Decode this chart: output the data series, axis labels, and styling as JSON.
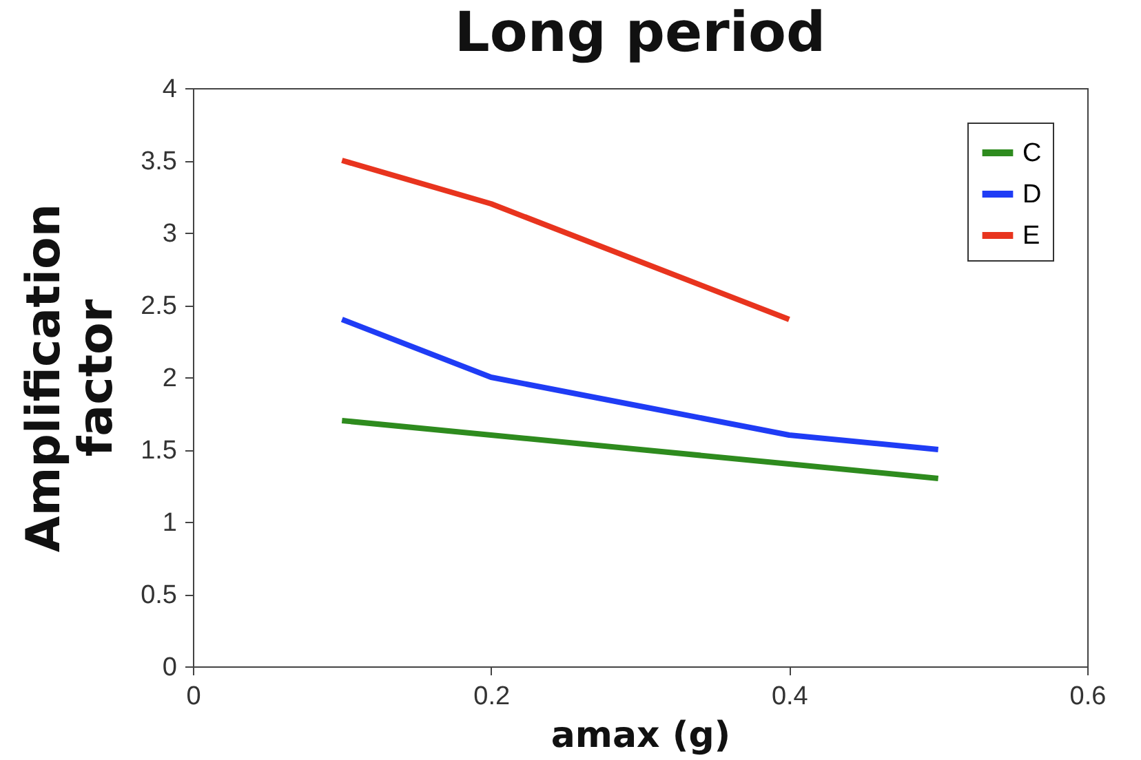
{
  "chart_data": {
    "type": "line",
    "title": "Long period",
    "xlabel": "amax (g)",
    "ylabel": "Amplification factor",
    "x": [
      0.1,
      0.2,
      0.3,
      0.4,
      0.5
    ],
    "series": [
      {
        "name": "C",
        "color": "#2e8b1e",
        "values": [
          1.7,
          1.6,
          1.5,
          1.4,
          1.3
        ]
      },
      {
        "name": "D",
        "color": "#1f3cf5",
        "values": [
          2.4,
          2.0,
          1.8,
          1.6,
          1.5
        ]
      },
      {
        "name": "E",
        "color": "#e8341e",
        "values": [
          3.5,
          3.2,
          2.8,
          2.4,
          null
        ]
      }
    ],
    "xlim": [
      0,
      0.6
    ],
    "xticks": [
      0,
      0.2,
      0.4,
      0.6
    ],
    "ylim": [
      0,
      4
    ],
    "yticks": [
      0,
      0.5,
      1,
      1.5,
      2,
      2.5,
      3,
      3.5,
      4
    ],
    "grid": false,
    "legend": "top right",
    "marker": "none",
    "line_style": "solid"
  }
}
